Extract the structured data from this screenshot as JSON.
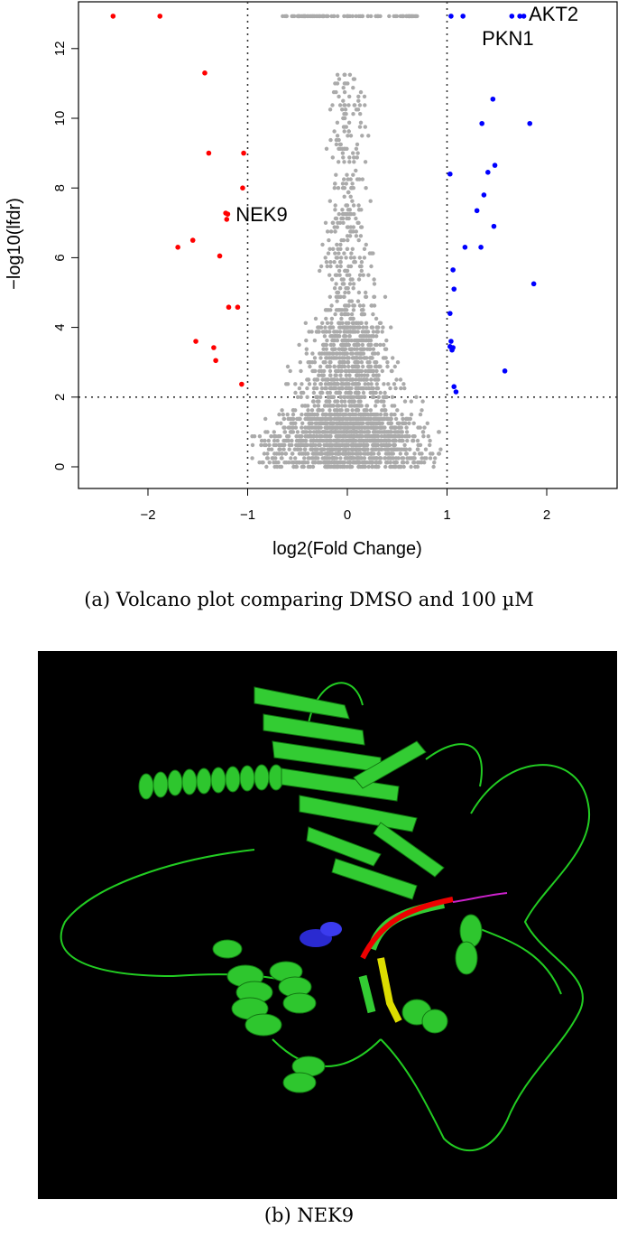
{
  "caption_a": "(a) Volcano plot comparing DMSO and 100 µM",
  "caption_b": "(b) NEK9",
  "chart_data": {
    "type": "scatter",
    "title": "",
    "xlabel": "log2(Fold Change)",
    "ylabel": "−log10(lfdr)",
    "xlim": [
      -2.7,
      2.7
    ],
    "ylim": [
      -0.2,
      13.3
    ],
    "x_ticks": [
      -2,
      -1,
      0,
      1,
      2
    ],
    "x_tick_labels": [
      "−2",
      "−1",
      "0",
      "1",
      "2"
    ],
    "y_ticks": [
      0,
      2,
      4,
      6,
      8,
      10,
      12
    ],
    "y_tick_labels": [
      "0",
      "2",
      "4",
      "6",
      "8",
      "10",
      "12"
    ],
    "grid": false,
    "threshold_lines": {
      "x": [
        -1,
        1
      ],
      "y": [
        2
      ]
    },
    "series": [
      {
        "color": "#ff0000",
        "points": [
          [
            -2.35,
            12.93
          ],
          [
            -1.88,
            12.93
          ],
          [
            -1.43,
            11.3
          ],
          [
            -1.39,
            9.0
          ],
          [
            -1.04,
            9.0
          ],
          [
            -1.05,
            8.0
          ],
          [
            -1.22,
            7.28
          ],
          [
            -1.2,
            7.25
          ],
          [
            -1.21,
            7.1
          ],
          [
            -1.7,
            6.3
          ],
          [
            -1.55,
            6.5
          ],
          [
            -1.28,
            6.05
          ],
          [
            -1.19,
            4.58
          ],
          [
            -1.1,
            4.58
          ],
          [
            -1.52,
            3.6
          ],
          [
            -1.34,
            3.42
          ],
          [
            -1.32,
            3.05
          ],
          [
            -1.06,
            2.37
          ]
        ]
      },
      {
        "color": "#0000ff",
        "points": [
          [
            1.04,
            12.93
          ],
          [
            1.16,
            12.93
          ],
          [
            1.65,
            12.93
          ],
          [
            1.73,
            12.93
          ],
          [
            1.77,
            12.93
          ],
          [
            1.46,
            10.55
          ],
          [
            1.35,
            9.85
          ],
          [
            1.83,
            9.85
          ],
          [
            1.48,
            8.65
          ],
          [
            1.41,
            8.45
          ],
          [
            1.03,
            8.4
          ],
          [
            1.37,
            7.8
          ],
          [
            1.3,
            7.35
          ],
          [
            1.47,
            6.9
          ],
          [
            1.18,
            6.3
          ],
          [
            1.34,
            6.3
          ],
          [
            1.06,
            5.65
          ],
          [
            1.07,
            5.1
          ],
          [
            1.87,
            5.25
          ],
          [
            1.03,
            4.4
          ],
          [
            1.04,
            3.6
          ],
          [
            1.03,
            3.45
          ],
          [
            1.06,
            3.42
          ],
          [
            1.05,
            3.35
          ],
          [
            1.58,
            2.75
          ],
          [
            1.07,
            2.3
          ],
          [
            1.09,
            2.15
          ]
        ]
      }
    ],
    "background_series": {
      "color": "#aaaaaa",
      "description_count": 2500,
      "x_range": [
        -1,
        1
      ],
      "y_range": [
        0,
        12.95
      ]
    },
    "annotations": [
      {
        "text": "AKT2",
        "x": 1.82,
        "y": 13.0
      },
      {
        "text": "PKN1",
        "x": 1.35,
        "y": 12.3
      },
      {
        "text": "NEK9",
        "x": -1.12,
        "y": 7.25
      }
    ]
  }
}
